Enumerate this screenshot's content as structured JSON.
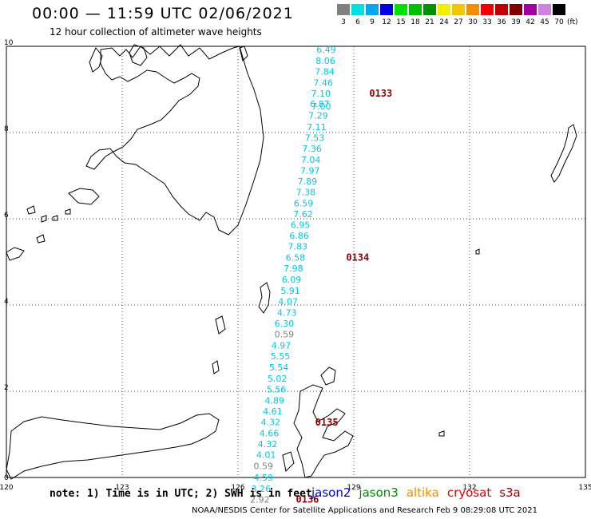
{
  "header": {
    "title": "00:00 — 11:59 UTC 02/06/2021",
    "subtitle": "12 hour collection of altimeter wave heights"
  },
  "legend": {
    "unit": "(ft)",
    "bins": [
      {
        "label": "3",
        "color": "#808080"
      },
      {
        "label": "6",
        "color": "#00e0e0"
      },
      {
        "label": "9",
        "color": "#00a8f0"
      },
      {
        "label": "12",
        "color": "#0000e0"
      },
      {
        "label": "15",
        "color": "#00e000"
      },
      {
        "label": "18",
        "color": "#00c000"
      },
      {
        "label": "21",
        "color": "#009000"
      },
      {
        "label": "24",
        "color": "#f0f000"
      },
      {
        "label": "27",
        "color": "#f0c800"
      },
      {
        "label": "30",
        "color": "#f09000"
      },
      {
        "label": "33",
        "color": "#f00000"
      },
      {
        "label": "36",
        "color": "#c00000"
      },
      {
        "label": "39",
        "color": "#800000"
      },
      {
        "label": "42",
        "color": "#a000a0"
      },
      {
        "label": "45",
        "color": "#d080e0"
      },
      {
        "label": "70",
        "color": "#000000"
      }
    ]
  },
  "map": {
    "lon_labels": [
      "120",
      "123",
      "126",
      "129",
      "132",
      "135"
    ],
    "lat_labels": [
      "0",
      "2",
      "4",
      "6",
      "8",
      "10"
    ],
    "lon_range": [
      120,
      135
    ],
    "lat_range": [
      0,
      10
    ],
    "track_readings": [
      {
        "v": "6.49",
        "lon": 128.54,
        "lat": 9.85,
        "color": "#00c8e0"
      },
      {
        "v": "8.06",
        "lon": 128.52,
        "lat": 9.59,
        "color": "#00c8e0"
      },
      {
        "v": "7.84",
        "lon": 128.5,
        "lat": 9.34,
        "color": "#00c8e0"
      },
      {
        "v": "7.46",
        "lon": 128.46,
        "lat": 9.08,
        "color": "#00c8e0"
      },
      {
        "v": "7.10",
        "lon": 128.4,
        "lat": 8.83,
        "color": "#00c8e0"
      },
      {
        "v": "6.87",
        "lon": 128.37,
        "lat": 8.59,
        "color": "#00c8e0"
      },
      {
        "v": "7.00",
        "lon": 128.41,
        "lat": 8.54,
        "color": "#00c8e0"
      },
      {
        "v": "7.29",
        "lon": 128.33,
        "lat": 8.32,
        "color": "#00c8e0"
      },
      {
        "v": "7.11",
        "lon": 128.29,
        "lat": 8.06,
        "color": "#00c8e0"
      },
      {
        "v": "7.53",
        "lon": 128.24,
        "lat": 7.81,
        "color": "#00c8e0"
      },
      {
        "v": "7.36",
        "lon": 128.17,
        "lat": 7.56,
        "color": "#00c8e0"
      },
      {
        "v": "7.04",
        "lon": 128.14,
        "lat": 7.3,
        "color": "#00c8e0"
      },
      {
        "v": "7.97",
        "lon": 128.12,
        "lat": 7.05,
        "color": "#00c8e0"
      },
      {
        "v": "7.89",
        "lon": 128.05,
        "lat": 6.8,
        "color": "#00c8e0"
      },
      {
        "v": "7.38",
        "lon": 128.01,
        "lat": 6.55,
        "color": "#00c8e0"
      },
      {
        "v": "6.59",
        "lon": 127.95,
        "lat": 6.29,
        "color": "#00c8e0"
      },
      {
        "v": "7.62",
        "lon": 127.94,
        "lat": 6.04,
        "color": "#00c8e0"
      },
      {
        "v": "6.95",
        "lon": 127.87,
        "lat": 5.79,
        "color": "#00c8e0"
      },
      {
        "v": "6.86",
        "lon": 127.84,
        "lat": 5.54,
        "color": "#00c8e0"
      },
      {
        "v": "7.83",
        "lon": 127.8,
        "lat": 5.29,
        "color": "#00c8e0"
      },
      {
        "v": "6.58",
        "lon": 127.74,
        "lat": 5.03,
        "color": "#00c8e0"
      },
      {
        "v": "7.98",
        "lon": 127.69,
        "lat": 4.78,
        "color": "#00c8e0"
      },
      {
        "v": "6.09",
        "lon": 127.64,
        "lat": 4.52,
        "color": "#00c8e0"
      },
      {
        "v": "5.91",
        "lon": 127.61,
        "lat": 4.26,
        "color": "#00c8e0"
      },
      {
        "v": "4.07",
        "lon": 127.55,
        "lat": 4.01,
        "color": "#00c8e0"
      },
      {
        "v": "4.73",
        "lon": 127.52,
        "lat": 3.75,
        "color": "#00c8e0"
      },
      {
        "v": "6.30",
        "lon": 127.45,
        "lat": 3.5,
        "color": "#00c8e0"
      },
      {
        "v": "0.59",
        "lon": 127.45,
        "lat": 3.25,
        "color": "#808080"
      },
      {
        "v": "4.97",
        "lon": 127.37,
        "lat": 2.99,
        "color": "#00c8e0"
      },
      {
        "v": "5.55",
        "lon": 127.35,
        "lat": 2.74,
        "color": "#00c8e0"
      },
      {
        "v": "5.54",
        "lon": 127.31,
        "lat": 2.48,
        "color": "#00c8e0"
      },
      {
        "v": "5.02",
        "lon": 127.27,
        "lat": 2.22,
        "color": "#00c8e0"
      },
      {
        "v": "5.56",
        "lon": 127.25,
        "lat": 1.97,
        "color": "#00c8e0"
      },
      {
        "v": "4.89",
        "lon": 127.2,
        "lat": 1.71,
        "color": "#00c8e0"
      },
      {
        "v": "4.61",
        "lon": 127.15,
        "lat": 1.46,
        "color": "#00c8e0"
      },
      {
        "v": "4.32",
        "lon": 127.1,
        "lat": 1.21,
        "color": "#00c8e0"
      },
      {
        "v": "4.66",
        "lon": 127.06,
        "lat": 0.95,
        "color": "#00c8e0"
      },
      {
        "v": "4.32",
        "lon": 127.02,
        "lat": 0.7,
        "color": "#00c8e0"
      },
      {
        "v": "4.01",
        "lon": 126.98,
        "lat": 0.45,
        "color": "#00c8e0"
      },
      {
        "v": "0.59",
        "lon": 126.91,
        "lat": 0.19,
        "color": "#808080"
      },
      {
        "v": "4.59",
        "lon": 126.91,
        "lat": -0.07,
        "color": "#00c8e0"
      },
      {
        "v": "3.26",
        "lon": 126.85,
        "lat": -0.33,
        "color": "#00c8e0"
      },
      {
        "v": "2.92",
        "lon": 126.82,
        "lat": -0.58,
        "color": "#808080"
      }
    ],
    "time_labels": [
      {
        "text": "0133",
        "lon": 129.4,
        "lat": 8.83
      },
      {
        "text": "0134",
        "lon": 128.8,
        "lat": 5.03
      },
      {
        "text": "0135",
        "lon": 128.0,
        "lat": 1.2
      },
      {
        "text": "0136",
        "lon": 127.5,
        "lat": -0.58
      }
    ]
  },
  "footer": {
    "note": "note:  1) Time is in UTC;  2) SWH is in feet",
    "satellites": [
      {
        "name": "jason2",
        "color": "#0000e0"
      },
      {
        "name": "jason3",
        "color": "#008c00"
      },
      {
        "name": "altika",
        "color": "#f09000"
      },
      {
        "name": "cryosat",
        "color": "#e00000"
      },
      {
        "name": "s3a",
        "color": "#a00000"
      }
    ],
    "credit": "NOAA/NESDIS Center for Satellite Applications and Research    Feb  9 08:29:08 UTC 2021"
  }
}
